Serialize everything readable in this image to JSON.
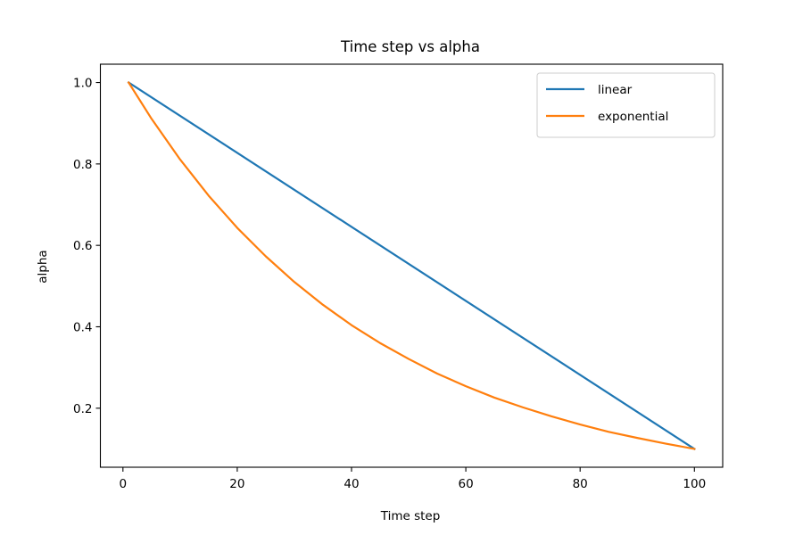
{
  "chart_data": {
    "type": "line",
    "title": "Time step vs alpha",
    "xlabel": "Time step",
    "ylabel": "alpha",
    "xlim": [
      -3.95,
      104.95
    ],
    "ylim": [
      0.055,
      1.045
    ],
    "xticks": [
      0,
      20,
      40,
      60,
      80,
      100
    ],
    "yticks": [
      0.2,
      0.4,
      0.6,
      0.8,
      1.0
    ],
    "xtick_labels": [
      "0",
      "20",
      "40",
      "60",
      "80",
      "100"
    ],
    "ytick_labels": [
      "0.2",
      "0.4",
      "0.6",
      "0.8",
      "1.0"
    ],
    "grid": false,
    "legend_position": "top-right",
    "series": [
      {
        "name": "linear",
        "color": "#1f77b4",
        "x": [
          1,
          100
        ],
        "y": [
          1.0,
          0.1
        ]
      },
      {
        "name": "exponential",
        "color": "#ff7f0e",
        "x": [
          1,
          5,
          10,
          15,
          20,
          25,
          30,
          35,
          40,
          45,
          50,
          55,
          60,
          65,
          70,
          75,
          80,
          85,
          90,
          95,
          100
        ],
        "y": [
          1.0,
          0.911,
          0.811,
          0.722,
          0.643,
          0.573,
          0.51,
          0.454,
          0.404,
          0.36,
          0.321,
          0.285,
          0.254,
          0.226,
          0.202,
          0.18,
          0.16,
          0.142,
          0.127,
          0.113,
          0.1
        ]
      }
    ]
  }
}
